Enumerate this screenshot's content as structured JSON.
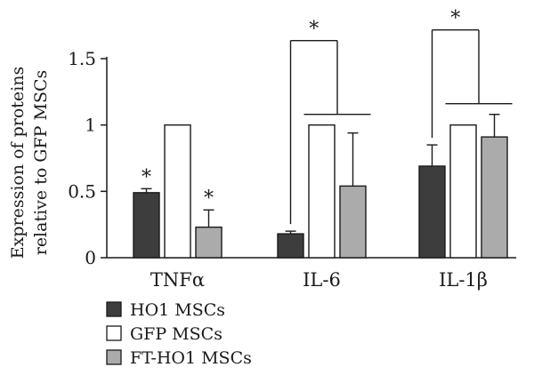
{
  "chart_data": {
    "type": "bar",
    "ylabel_lines": [
      "Expression of proteins",
      "relative to GFP MSCs"
    ],
    "ylim": [
      0,
      1.5
    ],
    "yticks": [
      "0",
      "0.5",
      "1",
      "1.5"
    ],
    "categories": [
      "TNFα",
      "IL-6",
      "IL-1β"
    ],
    "series": [
      {
        "name": "HO1 MSCs",
        "values": [
          0.49,
          0.18,
          0.69
        ],
        "errors": [
          0.03,
          0.02,
          0.16
        ],
        "color": "#3d3d3d"
      },
      {
        "name": "GFP MSCs",
        "values": [
          1.0,
          1.0,
          1.0
        ],
        "errors": [
          0,
          0,
          0
        ],
        "color": "#ffffff"
      },
      {
        "name": "FT-HO1 MSCs",
        "values": [
          0.23,
          0.54,
          0.91
        ],
        "errors": [
          0.13,
          0.4,
          0.17
        ],
        "color": "#ababab"
      }
    ],
    "bar_stars": [
      {
        "category": 0,
        "series": 0,
        "label": "*"
      },
      {
        "category": 0,
        "series": 2,
        "label": "*"
      }
    ],
    "bracket_stars": [
      {
        "category": 1,
        "from_series": 0,
        "label": "*"
      },
      {
        "category": 2,
        "from_series": 0,
        "label": "*"
      }
    ],
    "legend_position": "bottom-left",
    "grid": false
  }
}
